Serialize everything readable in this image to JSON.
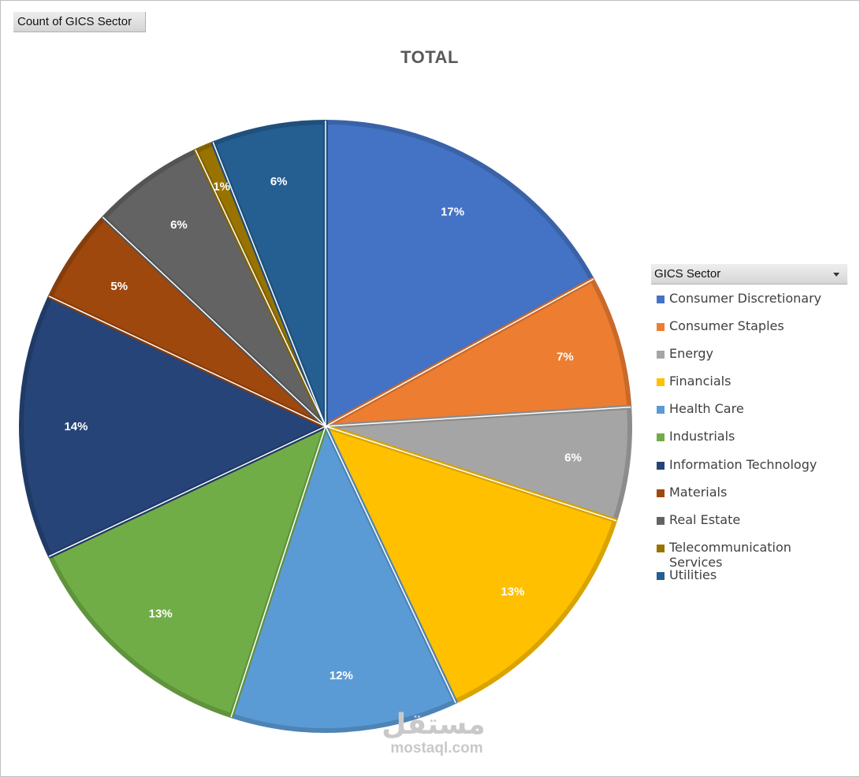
{
  "field_button": {
    "label": "Count of GICS Sector"
  },
  "legend": {
    "header": "GICS Sector"
  },
  "watermark": {
    "arabic": "مستقل",
    "latin": "mostaql.com"
  },
  "chart_data": {
    "type": "pie",
    "title": "TOTAL",
    "legend_position": "right",
    "slices": [
      {
        "name": "Consumer Discretionary",
        "value": 17,
        "label": "17%",
        "color": "#4472C4",
        "edge": "#3A62A7"
      },
      {
        "name": "Consumer Staples",
        "value": 7,
        "label": "7%",
        "color": "#ED7D31",
        "edge": "#C9692A"
      },
      {
        "name": "Energy",
        "value": 6,
        "label": "6%",
        "color": "#A5A5A5",
        "edge": "#8C8C8C"
      },
      {
        "name": "Financials",
        "value": 13,
        "label": "13%",
        "color": "#FFC000",
        "edge": "#D9A300"
      },
      {
        "name": "Health Care",
        "value": 12,
        "label": "12%",
        "color": "#5B9BD5",
        "edge": "#4D84B5"
      },
      {
        "name": "Industrials",
        "value": 13,
        "label": "13%",
        "color": "#70AD47",
        "edge": "#5F933C"
      },
      {
        "name": "Information Technology",
        "value": 14,
        "label": "14%",
        "color": "#264478",
        "edge": "#203A66"
      },
      {
        "name": "Materials",
        "value": 5,
        "label": "5%",
        "color": "#9E480E",
        "edge": "#863D0C"
      },
      {
        "name": "Real Estate",
        "value": 6,
        "label": "6%",
        "color": "#636363",
        "edge": "#545454"
      },
      {
        "name": "Telecommunication Services",
        "value": 1,
        "label": "1%",
        "color": "#997300",
        "edge": "#826200"
      },
      {
        "name": "Utilities",
        "value": 6,
        "label": "6%",
        "color": "#255E91",
        "edge": "#1F507B"
      }
    ]
  }
}
